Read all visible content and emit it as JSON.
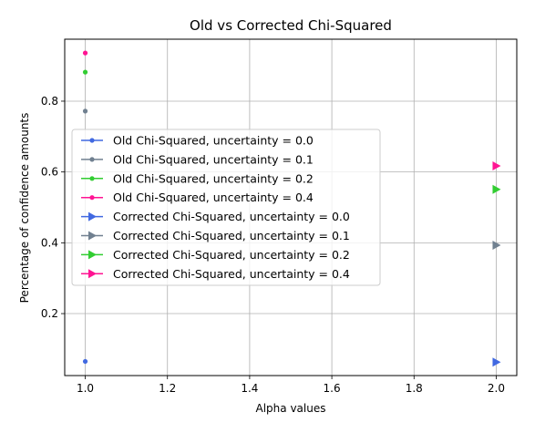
{
  "chart_data": {
    "type": "scatter",
    "title": "Old vs Corrected Chi-Squared",
    "xlabel": "Alpha values",
    "ylabel": "Percentage of confidence amounts",
    "xlim": [
      0.95,
      2.05
    ],
    "ylim": [
      0.025,
      0.975
    ],
    "x_ticks": [
      1.0,
      1.2,
      1.4,
      1.6,
      1.8,
      2.0
    ],
    "x_tick_labels": [
      "1.0",
      "1.2",
      "1.4",
      "1.6",
      "1.8",
      "2.0"
    ],
    "y_ticks": [
      0.2,
      0.4,
      0.6,
      0.8
    ],
    "y_tick_labels": [
      "0.2",
      "0.4",
      "0.6",
      "0.8"
    ],
    "grid": true,
    "legend_position": "center-left",
    "series": [
      {
        "name": "Old Chi-Squared, uncertainty = 0.0",
        "marker": "circle",
        "color": "#4169e1",
        "points": [
          [
            1.0,
            0.065
          ]
        ]
      },
      {
        "name": "Old Chi-Squared, uncertainty = 0.1",
        "marker": "circle",
        "color": "#708090",
        "points": [
          [
            1.0,
            0.772
          ]
        ]
      },
      {
        "name": "Old Chi-Squared, uncertainty = 0.2",
        "marker": "circle",
        "color": "#32cd32",
        "points": [
          [
            1.0,
            0.882
          ]
        ]
      },
      {
        "name": "Old Chi-Squared, uncertainty = 0.4",
        "marker": "circle",
        "color": "#ff1493",
        "points": [
          [
            1.0,
            0.936
          ]
        ]
      },
      {
        "name": "Corrected Chi-Squared, uncertainty = 0.0",
        "marker": "triangle-right",
        "color": "#4169e1",
        "points": [
          [
            2.0,
            0.063
          ]
        ]
      },
      {
        "name": "Corrected Chi-Squared, uncertainty = 0.1",
        "marker": "triangle-right",
        "color": "#708090",
        "points": [
          [
            2.0,
            0.393
          ]
        ]
      },
      {
        "name": "Corrected Chi-Squared, uncertainty = 0.2",
        "marker": "triangle-right",
        "color": "#32cd32",
        "points": [
          [
            2.0,
            0.551
          ]
        ]
      },
      {
        "name": "Corrected Chi-Squared, uncertainty = 0.4",
        "marker": "triangle-right",
        "color": "#ff1493",
        "points": [
          [
            2.0,
            0.617
          ]
        ]
      }
    ]
  }
}
